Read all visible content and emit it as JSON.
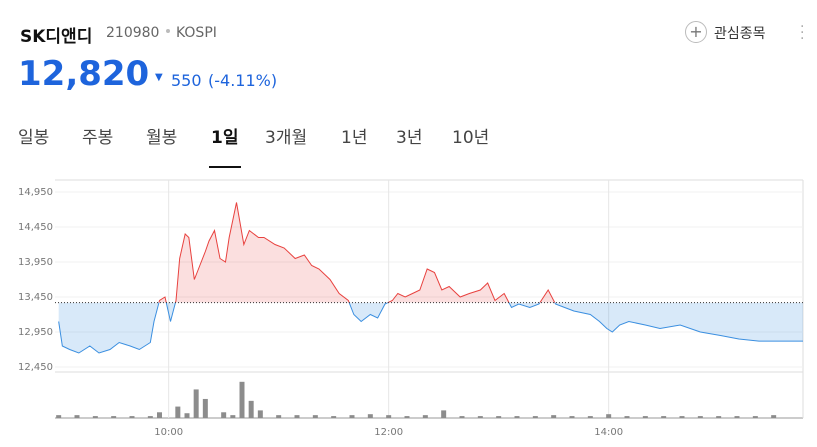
{
  "header": {
    "name": "SK디앤디",
    "code": "210980",
    "market": "KOSPI",
    "watch": "관심종목",
    "price": "12,820",
    "change": "550",
    "change_pct": "(-4.11%)"
  },
  "tabs": [
    "일봉",
    "주봉",
    "월봉",
    "1일",
    "3개월",
    "1년",
    "3년",
    "10년"
  ],
  "active_tab": 3,
  "chart_data": {
    "type": "line",
    "xlim": [
      538,
      946
    ],
    "xticks": [
      {
        "value": 600,
        "label": "10:00"
      },
      {
        "value": 720,
        "label": "12:00"
      },
      {
        "value": 840,
        "label": "14:00"
      }
    ],
    "ylim": [
      12450,
      14950
    ],
    "yticks": [
      {
        "value": 12450,
        "label": "12,450"
      },
      {
        "value": 12950,
        "label": "12,950"
      },
      {
        "value": 13450,
        "label": "13,450"
      },
      {
        "value": 13950,
        "label": "13,950"
      },
      {
        "value": 14450,
        "label": "14,450"
      },
      {
        "value": 14950,
        "label": "14,950"
      }
    ],
    "reference_line": 13370,
    "grid": true,
    "series": [
      {
        "color": "#e8423f",
        "color_below": "#3b8fe0",
        "x": [
          540,
          542,
          546,
          551,
          557,
          562,
          568,
          573,
          579,
          584,
          590,
          592,
          595,
          598,
          601,
          604,
          606,
          609,
          611,
          614,
          617,
          620,
          622,
          625,
          628,
          631,
          633,
          637,
          639,
          641,
          644,
          649,
          652,
          658,
          663,
          669,
          674,
          678,
          682,
          688,
          693,
          698,
          701,
          705,
          710,
          714,
          718,
          722,
          725,
          729,
          733,
          737,
          741,
          745,
          749,
          753,
          759,
          764,
          770,
          774,
          778,
          783,
          787,
          791,
          797,
          802,
          807,
          811,
          816,
          821,
          830,
          835,
          839,
          842,
          846,
          851,
          860,
          868,
          879,
          890,
          901,
          911,
          922,
          946
        ],
        "values": [
          13100,
          12750,
          12700,
          12650,
          12750,
          12650,
          12700,
          12800,
          12750,
          12700,
          12800,
          13100,
          13400,
          13450,
          13100,
          13400,
          14000,
          14350,
          14300,
          13700,
          13900,
          14100,
          14250,
          14400,
          14000,
          13950,
          14300,
          14800,
          14500,
          14200,
          14400,
          14300,
          14300,
          14200,
          14150,
          14000,
          14050,
          13900,
          13850,
          13700,
          13500,
          13400,
          13200,
          13100,
          13200,
          13150,
          13350,
          13400,
          13500,
          13450,
          13500,
          13550,
          13850,
          13800,
          13550,
          13600,
          13450,
          13500,
          13550,
          13650,
          13400,
          13500,
          13300,
          13350,
          13300,
          13350,
          13550,
          13350,
          13300,
          13250,
          13200,
          13100,
          13000,
          12950,
          13050,
          13100,
          13050,
          13000,
          13050,
          12950,
          12900,
          12850,
          12820,
          12820
        ]
      }
    ],
    "volume": {
      "color": "#8c8c8c",
      "ylim": [
        0,
        42
      ],
      "x": [
        540,
        550,
        560,
        570,
        580,
        590,
        595,
        605,
        610,
        615,
        620,
        630,
        635,
        640,
        645,
        650,
        660,
        670,
        680,
        690,
        700,
        710,
        720,
        730,
        740,
        750,
        760,
        770,
        780,
        790,
        800,
        810,
        820,
        830,
        840,
        850,
        860,
        870,
        880,
        890,
        900,
        910,
        920,
        930
      ],
      "values": [
        3,
        3,
        2,
        2,
        2,
        2,
        6,
        12,
        5,
        30,
        20,
        6,
        3,
        38,
        18,
        8,
        3,
        3,
        3,
        2,
        3,
        4,
        3,
        2,
        3,
        8,
        2,
        2,
        2,
        2,
        2,
        3,
        2,
        2,
        4,
        2,
        2,
        2,
        2,
        2,
        2,
        2,
        2,
        3
      ]
    }
  }
}
